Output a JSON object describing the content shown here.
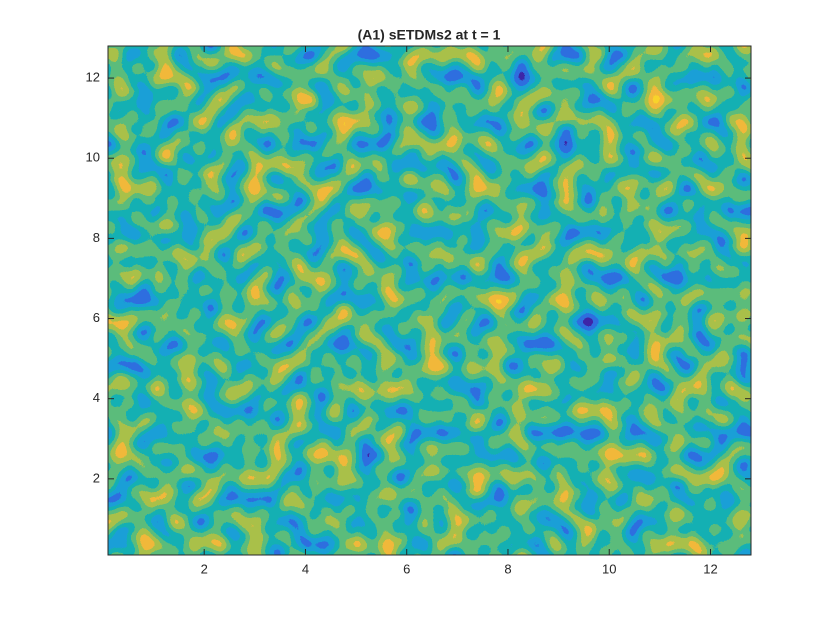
{
  "chart_data": {
    "type": "contour",
    "title": "(A1) sETDMs2 at t = 1",
    "xlim": [
      0.1,
      12.8
    ],
    "ylim": [
      0.1,
      12.8
    ],
    "xticks": [
      2,
      4,
      6,
      8,
      10,
      12
    ],
    "yticks": [
      2,
      4,
      6,
      8,
      10,
      12
    ],
    "colormap": [
      "#3e26a8",
      "#2f6fe0",
      "#1aa0d8",
      "#15b1b3",
      "#5bbd7c",
      "#a9c04a",
      "#f2b93b",
      "#f9d42a"
    ]
  }
}
